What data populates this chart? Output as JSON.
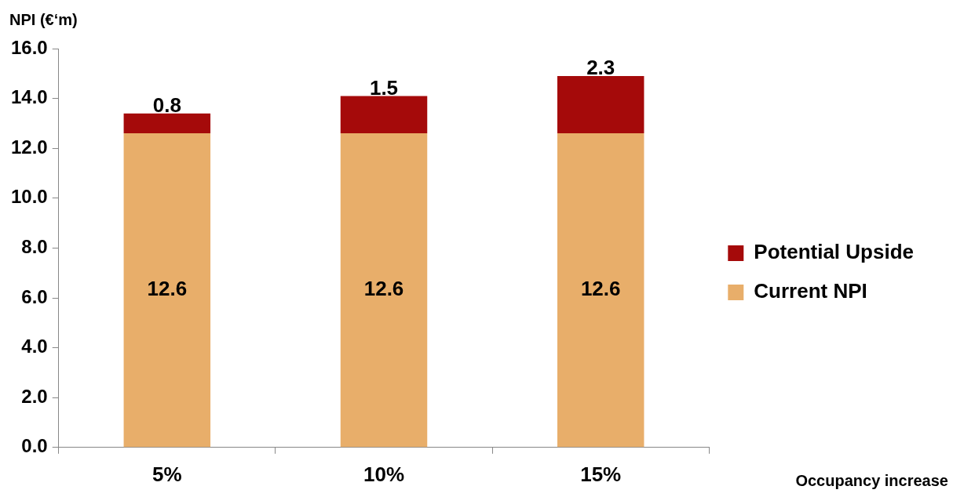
{
  "chart_data": {
    "type": "bar",
    "stacked": true,
    "annotations": [
      "Occupancy increase"
    ],
    "ylabel": "NPI (€‘m)",
    "categories": [
      "5%",
      "10%",
      "15%"
    ],
    "series": [
      {
        "name": "Current NPI",
        "color": "#e8ae6a",
        "values": [
          12.6,
          12.6,
          12.6
        ]
      },
      {
        "name": "Potential Upside",
        "color": "#a50a0a",
        "values": [
          0.8,
          1.5,
          2.3
        ]
      }
    ],
    "ylim": [
      0,
      16
    ],
    "yticks": [
      {
        "value": 0,
        "label": "0.0"
      },
      {
        "value": 2,
        "label": "2.0"
      },
      {
        "value": 4,
        "label": "4.0"
      },
      {
        "value": 6,
        "label": "6.0"
      },
      {
        "value": 8,
        "label": "8.0"
      },
      {
        "value": 10,
        "label": "10.0"
      },
      {
        "value": 12,
        "label": "12.0"
      },
      {
        "value": 14,
        "label": "14.0"
      },
      {
        "value": 16,
        "label": "16.0"
      }
    ],
    "data_labels": true,
    "legend": "right",
    "grid": false
  }
}
